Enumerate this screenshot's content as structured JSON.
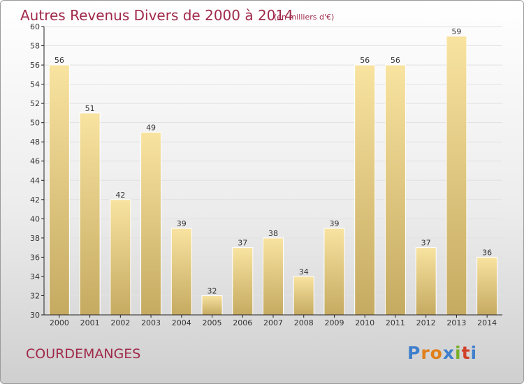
{
  "header": {
    "title": "Autres Revenus Divers de 2000 à 2014",
    "subtitle": "(en milliers d'€)"
  },
  "footer": {
    "commune": "COURDEMANGES",
    "brand": "Proxiti"
  },
  "colors": {
    "title": "#a0294a",
    "bar_light": "#f8e3a0",
    "bar_dark": "#c5aa61",
    "grid": "#e1e1e1",
    "axis": "#222222"
  },
  "chart_data": {
    "type": "bar",
    "title": "Autres Revenus Divers de 2000 à 2014",
    "subtitle": "(en milliers d'€)",
    "xlabel": "",
    "ylabel": "",
    "categories": [
      "2000",
      "2001",
      "2002",
      "2003",
      "2004",
      "2005",
      "2006",
      "2007",
      "2008",
      "2009",
      "2010",
      "2011",
      "2012",
      "2013",
      "2014"
    ],
    "values": [
      56,
      51,
      42,
      49,
      39,
      32,
      37,
      38,
      34,
      39,
      56,
      56,
      37,
      59,
      36
    ],
    "ylim": [
      30,
      60
    ],
    "yticks": [
      30,
      32,
      34,
      36,
      38,
      40,
      42,
      44,
      46,
      48,
      50,
      52,
      54,
      56,
      58,
      60
    ],
    "grid": true,
    "legend": "none"
  }
}
